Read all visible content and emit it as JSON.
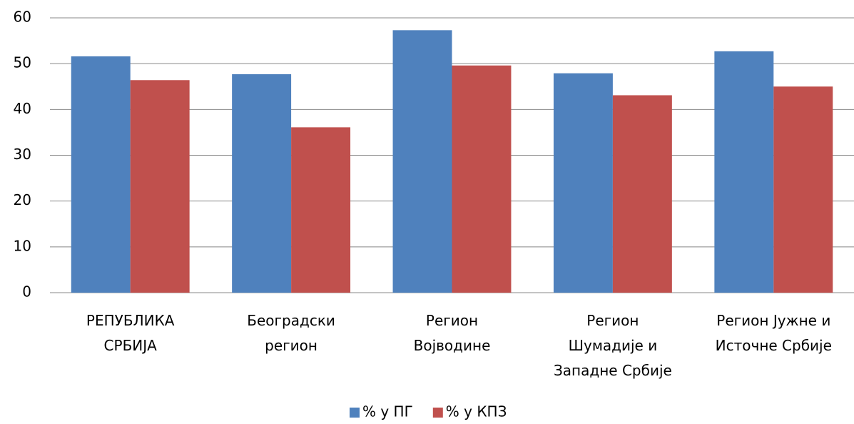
{
  "chart_data": {
    "type": "bar",
    "categories": [
      "РЕПУБЛИКА\nСРБИЈА",
      "Београдски\nрегион",
      "Регион\nВојводине",
      "Регион\nШумадије и\nЗападне Србије",
      "Регион Јужне и\nИсточне Србије"
    ],
    "series": [
      {
        "name": "% у ПГ",
        "color": "#4f81bd",
        "values": [
          51.6,
          47.7,
          57.3,
          47.9,
          52.7
        ]
      },
      {
        "name": "% у КПЗ",
        "color": "#c0504d",
        "values": [
          46.4,
          36.1,
          49.6,
          43.1,
          45.0
        ]
      }
    ],
    "ylim": [
      0,
      60
    ],
    "yticks": [
      0,
      10,
      20,
      30,
      40,
      50,
      60
    ],
    "grid": true,
    "legend": "bottom"
  }
}
